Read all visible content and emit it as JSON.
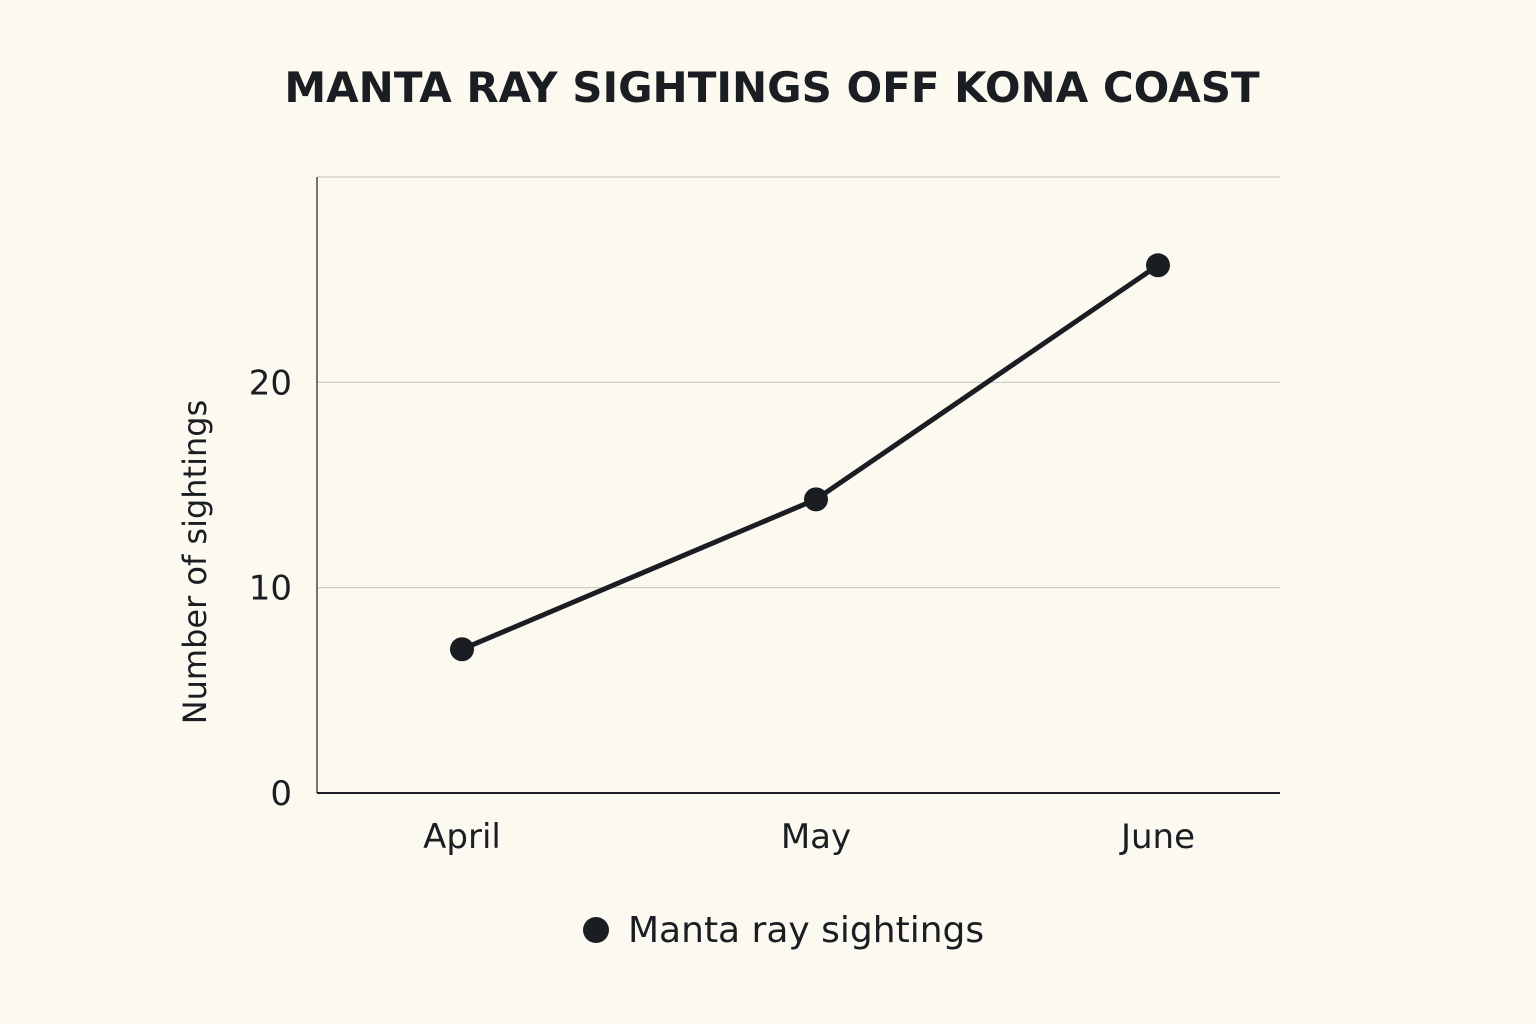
{
  "chart_data": {
    "type": "line",
    "title": "MANTA RAY SIGHTINGS OFF KONA COAST",
    "xlabel": "",
    "ylabel": "Number of sightings",
    "categories": [
      "April",
      "May",
      "June"
    ],
    "series": [
      {
        "name": "Manta ray sightings",
        "values": [
          7,
          14.3,
          25.7
        ]
      }
    ],
    "ylim": [
      0,
      30
    ],
    "yticks": [
      0,
      10,
      20
    ],
    "grid": true,
    "legend": "bottom-center",
    "colors": {
      "background": "#fcf9f1",
      "line": "#1a1d21",
      "grid": "#c9c9c4",
      "axis": "#1a1d21"
    }
  }
}
